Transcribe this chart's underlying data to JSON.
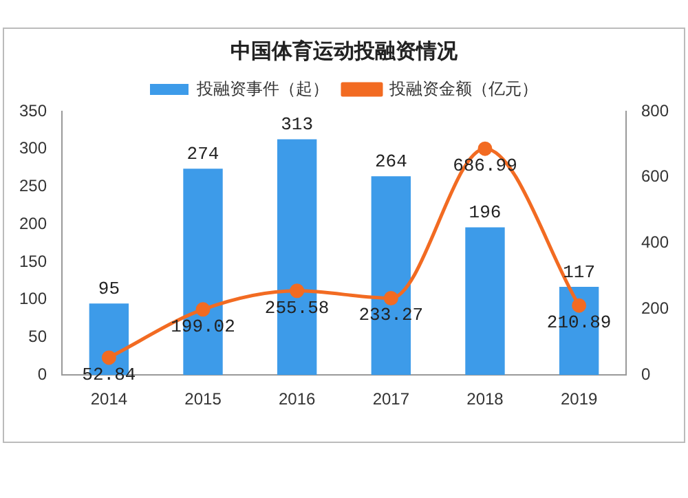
{
  "chart_data": {
    "type": "bar",
    "title": "中国体育运动投融资情况",
    "categories": [
      "2014",
      "2015",
      "2016",
      "2017",
      "2018",
      "2019"
    ],
    "series": [
      {
        "name": "投融资事件（起）",
        "color": "#3d9be9",
        "values": [
          95,
          274,
          313,
          264,
          196,
          117
        ]
      },
      {
        "name": "投融资金额（亿元）",
        "type": "line",
        "axis": "y2",
        "color": "#f26b22",
        "marker": "circle",
        "values": [
          52.84,
          199.02,
          255.58,
          233.27,
          686.99,
          210.89
        ]
      }
    ],
    "ylim": [
      0,
      350
    ],
    "yticks": [
      0,
      50,
      100,
      150,
      200,
      250,
      300,
      350
    ],
    "y2lim": [
      0,
      800
    ],
    "y2ticks": [
      0,
      200,
      400,
      600,
      800
    ],
    "data_labels": true,
    "legend": "top",
    "grid": false
  }
}
